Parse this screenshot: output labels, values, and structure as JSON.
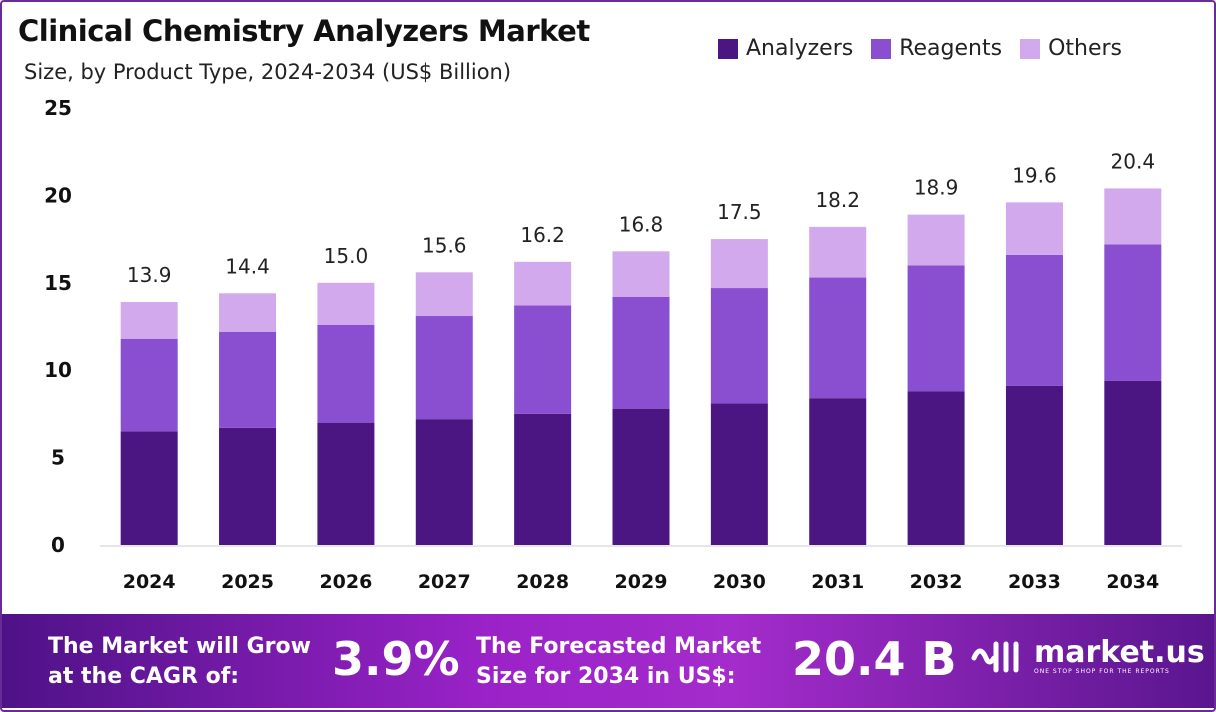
{
  "chart_data": {
    "type": "bar",
    "stacked": true,
    "title": "Clinical Chemistry Analyzers Market",
    "subtitle": "Size, by Product Type, 2024-2034 (US$ Billion)",
    "categories": [
      "2024",
      "2025",
      "2026",
      "2027",
      "2028",
      "2029",
      "2030",
      "2031",
      "2032",
      "2033",
      "2034"
    ],
    "series": [
      {
        "name": "Analyzers",
        "color": "#4b1682",
        "values": [
          6.5,
          6.7,
          7.0,
          7.2,
          7.5,
          7.8,
          8.1,
          8.4,
          8.8,
          9.1,
          9.4
        ]
      },
      {
        "name": "Reagents",
        "color": "#8a4fd0",
        "values": [
          5.3,
          5.5,
          5.6,
          5.9,
          6.2,
          6.4,
          6.6,
          6.9,
          7.2,
          7.5,
          7.8
        ]
      },
      {
        "name": "Others",
        "color": "#d2a9ec",
        "values": [
          2.1,
          2.2,
          2.4,
          2.5,
          2.5,
          2.6,
          2.8,
          2.9,
          2.9,
          3.0,
          3.2
        ]
      }
    ],
    "totals": [
      "13.9",
      "14.4",
      "15.0",
      "15.6",
      "16.2",
      "16.8",
      "17.5",
      "18.2",
      "18.9",
      "19.6",
      "20.4"
    ],
    "yticks": [
      "0",
      "5",
      "10",
      "15",
      "20",
      "25"
    ],
    "ylim": [
      0,
      25
    ],
    "legend": "top-right",
    "grid": false
  },
  "banner": {
    "cagr_label_1": "The Market will Grow",
    "cagr_label_2": "at the CAGR of:",
    "cagr_value": "3.9%",
    "forecast_label_1": "The Forecasted Market",
    "forecast_label_2": "Size for 2034 in US$:",
    "forecast_value": "20.4 B",
    "logo_name": "market.us",
    "logo_tagline": "ONE STOP SHOP FOR THE REPORTS"
  }
}
